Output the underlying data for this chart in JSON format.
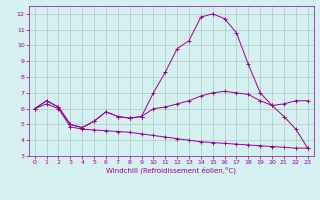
{
  "xlabel": "Windchill (Refroidissement éolien,°C)",
  "x": [
    0,
    1,
    2,
    3,
    4,
    5,
    6,
    7,
    8,
    9,
    10,
    11,
    12,
    13,
    14,
    15,
    16,
    17,
    18,
    19,
    20,
    21,
    22,
    23
  ],
  "line1": [
    6.0,
    6.5,
    6.1,
    5.0,
    4.8,
    5.2,
    5.8,
    5.5,
    5.4,
    5.5,
    6.0,
    6.1,
    6.3,
    6.5,
    6.8,
    7.0,
    7.1,
    7.0,
    6.9,
    6.5,
    6.2,
    6.3,
    6.5,
    6.5
  ],
  "line2": [
    6.0,
    6.5,
    6.1,
    5.0,
    4.8,
    5.2,
    5.8,
    5.5,
    5.4,
    5.5,
    7.0,
    8.3,
    9.8,
    10.3,
    11.8,
    12.0,
    11.7,
    10.8,
    8.8,
    7.0,
    6.2,
    5.5,
    4.7,
    3.5
  ],
  "line3": [
    6.0,
    6.3,
    6.0,
    4.85,
    4.7,
    4.65,
    4.6,
    4.55,
    4.5,
    4.4,
    4.3,
    4.2,
    4.1,
    4.0,
    3.9,
    3.85,
    3.8,
    3.75,
    3.7,
    3.65,
    3.6,
    3.55,
    3.5,
    3.5
  ],
  "line_color": "#990099",
  "bg_color": "#d4f0f0",
  "grid_color": "#b0c8c8",
  "ylim": [
    3,
    12.5
  ],
  "xlim": [
    -0.5,
    23.5
  ],
  "yticks": [
    3,
    4,
    5,
    6,
    7,
    8,
    9,
    10,
    11,
    12
  ],
  "xticks": [
    0,
    1,
    2,
    3,
    4,
    5,
    6,
    7,
    8,
    9,
    10,
    11,
    12,
    13,
    14,
    15,
    16,
    17,
    18,
    19,
    20,
    21,
    22,
    23
  ]
}
